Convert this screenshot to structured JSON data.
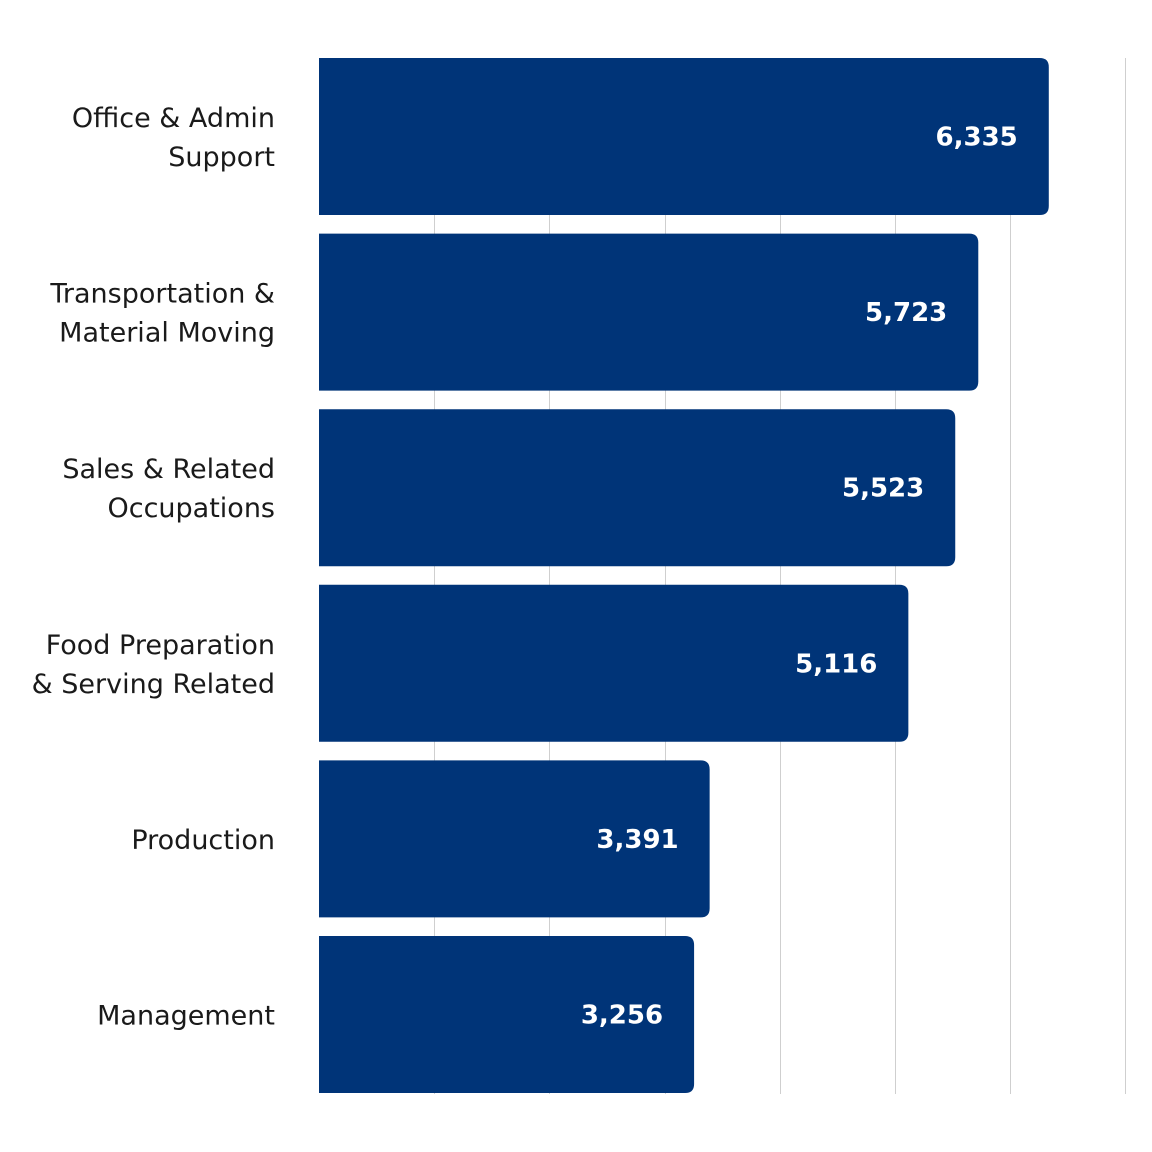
{
  "chart_data": {
    "type": "bar",
    "orientation": "horizontal",
    "categories": [
      [
        "Office & Admin",
        "Support"
      ],
      [
        "Transportation &",
        "Material Moving"
      ],
      [
        "Sales & Related",
        "Occupations"
      ],
      [
        "Food Preparation",
        "& Serving Related"
      ],
      [
        "Production"
      ],
      [
        "Management"
      ]
    ],
    "values": [
      6335,
      5723,
      5523,
      5116,
      3391,
      3256
    ],
    "value_labels": [
      "6,335",
      "5,723",
      "5,523",
      "5,116",
      "3,391",
      "3,256"
    ],
    "xlim": [
      0,
      7000
    ],
    "x_grid_step": 1000,
    "grid": true,
    "bar_color": "#003478",
    "value_label_color": "#ffffff",
    "gridline_color": "#cfcfcf",
    "legend": "none"
  }
}
